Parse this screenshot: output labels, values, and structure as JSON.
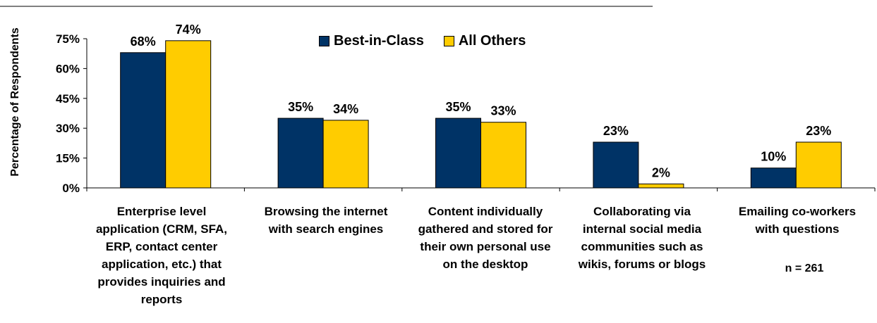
{
  "chart_data": {
    "type": "bar",
    "ylabel": "Percentage of Respondents",
    "ylim": [
      0,
      75
    ],
    "yticks": [
      "0%",
      "15%",
      "30%",
      "45%",
      "60%",
      "75%"
    ],
    "categories": [
      "Enterprise level application (CRM, SFA, ERP, contact center application, etc.) that provides inquiries and reports",
      "Browsing the internet with search engines",
      "Content individually gathered and stored for their own personal use on the desktop",
      "Collaborating via internal social media communities such as wikis, forums or blogs",
      "Emailing co-workers with questions"
    ],
    "series": [
      {
        "name": "Best-in-Class",
        "values": [
          68,
          35,
          35,
          23,
          10
        ],
        "labels": [
          "68%",
          "35%",
          "35%",
          "23%",
          "10%"
        ],
        "color": "#003366"
      },
      {
        "name": "All Others",
        "values": [
          74,
          34,
          33,
          2,
          23
        ],
        "labels": [
          "74%",
          "34%",
          "33%",
          "2%",
          "23%"
        ],
        "color": "#FFCC00"
      }
    ],
    "legend_position": "top-center",
    "annotation": "n = 261"
  }
}
